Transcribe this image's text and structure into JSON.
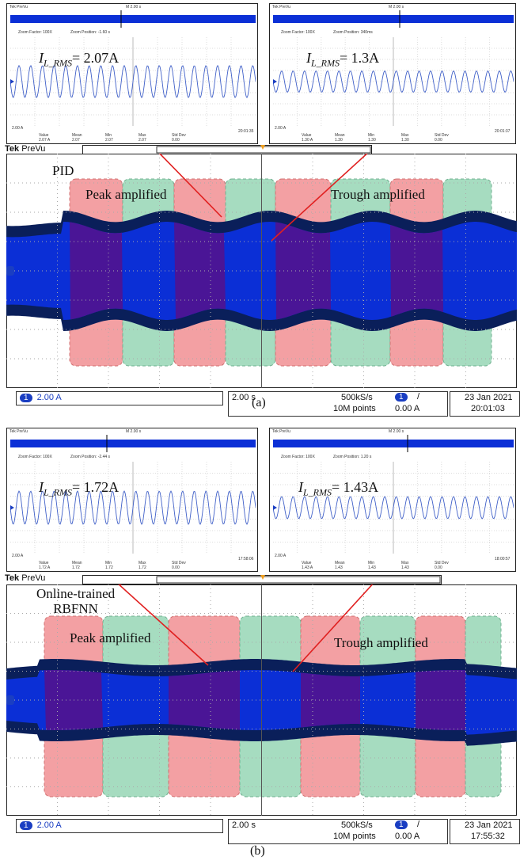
{
  "colors": {
    "waveform_blue": "#0b2fd6",
    "waveform_dark": "#0a1f5a",
    "peak_region": "#f3a0a3",
    "trough_region": "#a6dcc0",
    "peak_overlay_wave": "#4a1596",
    "trough_overlay_wave": "#1c3fb8",
    "arrow": "#e02020",
    "trigger": "#f0a020"
  },
  "panels": [
    {
      "id": "a",
      "caption": "(a)",
      "controller_label": "PID",
      "peak_label": "Peak amplified",
      "trough_label": "Trough amplified",
      "tek_brand": "Tek",
      "tek_mode": "PreVu",
      "status": {
        "channel": "1",
        "scale": "2.00 A",
        "timebase": "2.00 s",
        "sample_rate": "500kS/s",
        "points": "10M points",
        "trigger_channel": "1",
        "trigger_level": "0.00 A",
        "date": "23 Jan 2021",
        "time": "20:01:03"
      },
      "zoom_left": {
        "irms_label": "I",
        "irms_sub": "L_RMS",
        "irms_value": "= 2.07A",
        "header_left": "Tek PreVu",
        "header_center": "M 2.00 s",
        "zoom_factor": "Zoom Factor: 100X",
        "zoom_position": "Zoom Position: -1.60 s",
        "meas_labels": [
          "Value",
          "Mean",
          "Min",
          "Max",
          "Std Dev"
        ],
        "meas_values": [
          "2.07 A",
          "2.07",
          "2.07",
          "2.07",
          "0.00"
        ],
        "footer_left": "2.00 A",
        "footer_time": "20:01:35"
      },
      "zoom_right": {
        "irms_label": "I",
        "irms_sub": "L_RMS",
        "irms_value": "= 1.3A",
        "header_left": "Tek PreVu",
        "header_center": "M 2.00 s",
        "zoom_factor": "Zoom Factor: 100X",
        "zoom_position": "Zoom Position: 340ms",
        "meas_labels": [
          "Value",
          "Mean",
          "Min",
          "Max",
          "Std Dev"
        ],
        "meas_values": [
          "1.30 A",
          "1.30",
          "1.30",
          "1.30",
          "0.00"
        ],
        "footer_left": "2.00 A",
        "footer_time": "20:01:37"
      }
    },
    {
      "id": "b",
      "caption": "(b)",
      "controller_label_line1": "Online-trained",
      "controller_label_line2": "RBFNN",
      "peak_label": "Peak amplified",
      "trough_label": "Trough amplified",
      "tek_brand": "Tek",
      "tek_mode": "PreVu",
      "status": {
        "channel": "1",
        "scale": "2.00 A",
        "timebase": "2.00 s",
        "sample_rate": "500kS/s",
        "points": "10M points",
        "trigger_channel": "1",
        "trigger_level": "0.00 A",
        "date": "23 Jan 2021",
        "time": "17:55:32"
      },
      "zoom_left": {
        "irms_label": "I",
        "irms_sub": "L_RMS",
        "irms_value": "= 1.72A",
        "header_left": "Tek PreVu",
        "header_center": "M 2.00 s",
        "zoom_factor": "Zoom Factor: 100X",
        "zoom_position": "Zoom Position: -2.44 s",
        "meas_labels": [
          "Value",
          "Mean",
          "Min",
          "Max",
          "Std Dev"
        ],
        "meas_values": [
          "1.72 A",
          "1.72",
          "1.72",
          "1.72",
          "0.00"
        ],
        "footer_left": "2.00 A",
        "footer_time": "17:58:06"
      },
      "zoom_right": {
        "irms_label": "I",
        "irms_sub": "L_RMS",
        "irms_value": "= 1.43A",
        "header_left": "Tek PreVu",
        "header_center": "M 2.00 s",
        "zoom_factor": "Zoom Factor: 100X",
        "zoom_position": "Zoom Position: 1.20 s",
        "meas_labels": [
          "Value",
          "Mean",
          "Min",
          "Max",
          "Std Dev"
        ],
        "meas_values": [
          "1.43 A",
          "1.43",
          "1.43",
          "1.43",
          "0.00"
        ],
        "footer_left": "2.00 A",
        "footer_time": "18:00:57"
      }
    }
  ]
}
